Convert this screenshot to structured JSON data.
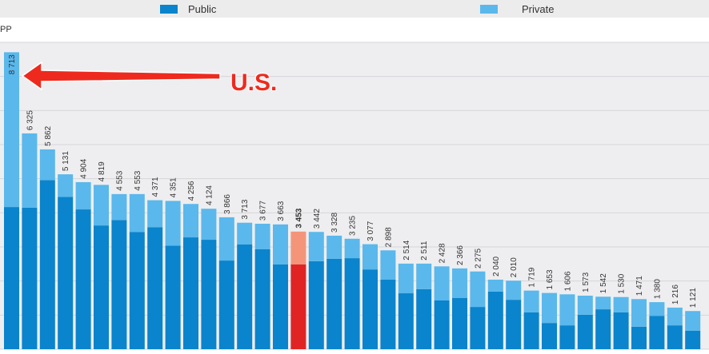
{
  "chart_data": {
    "type": "stacked-bar",
    "y_axis_label": "PP",
    "annotation": "U.S.",
    "categories": [
      null,
      null,
      null,
      null,
      null,
      null,
      null,
      null,
      null,
      null,
      null,
      null,
      null,
      null,
      null,
      null,
      null,
      null,
      null,
      null,
      null,
      null,
      null,
      null,
      null,
      null,
      null,
      null,
      null,
      null,
      null,
      null,
      null,
      null,
      null,
      null,
      null,
      null,
      null
    ],
    "series": [
      {
        "name": "Public",
        "color": "#0a84cc",
        "values": [
          4170,
          4150,
          4960,
          4470,
          4100,
          3630,
          3790,
          3440,
          3580,
          3040,
          3280,
          3210,
          2600,
          3070,
          2930,
          2490,
          2490,
          2580,
          2650,
          2670,
          2340,
          2040,
          1640,
          1760,
          1430,
          1500,
          1240,
          1690,
          1450,
          1080,
          770,
          700,
          1010,
          1170,
          1080,
          660,
          980,
          700,
          540
        ]
      },
      {
        "name": "Private",
        "color": "#5ab8ec",
        "values": [
          4540,
          2180,
          900,
          660,
          800,
          1190,
          760,
          1110,
          790,
          1310,
          980,
          910,
          1270,
          640,
          750,
          1170,
          960,
          860,
          680,
          570,
          740,
          860,
          870,
          750,
          1000,
          870,
          1040,
          350,
          560,
          640,
          880,
          910,
          560,
          370,
          450,
          810,
          400,
          520,
          580
        ]
      }
    ],
    "totals": {
      "values": [
        8713,
        6325,
        5862,
        5131,
        4904,
        4819,
        4553,
        4553,
        4371,
        4351,
        4256,
        4124,
        3866,
        3713,
        3677,
        3663,
        3453,
        3442,
        3328,
        3235,
        3077,
        2898,
        2514,
        2511,
        2428,
        2366,
        2275,
        2040,
        2010,
        1719,
        1653,
        1606,
        1573,
        1542,
        1530,
        1471,
        1380,
        1216,
        1121
      ],
      "value_labels": [
        "8 713",
        "6 325",
        "5 862",
        "5 131",
        "4 904",
        "4 819",
        "4 553",
        "4 553",
        "4 371",
        "4 351",
        "4 256",
        "4 124",
        "3 866",
        "3 713",
        "3 677",
        "3 663",
        "3 453",
        "3 442",
        "3 328",
        "3 235",
        "3 077",
        "2 898",
        "2 514",
        "2 511",
        "2 428",
        "2 366",
        "2 275",
        "2 040",
        "2 010",
        "1 719",
        "1 653",
        "1 606",
        "1 573",
        "1 542",
        "1 530",
        "1 471",
        "1 380",
        "1 216",
        "1 121"
      ]
    },
    "highlight": {
      "index": 16,
      "colors": [
        "#e02424",
        "#f4957a"
      ]
    },
    "ylim": [
      0,
      9000
    ],
    "yticks": [
      0,
      1000,
      2000,
      3000,
      4000,
      5000,
      6000,
      7000,
      8000,
      9000
    ],
    "grid": true
  }
}
